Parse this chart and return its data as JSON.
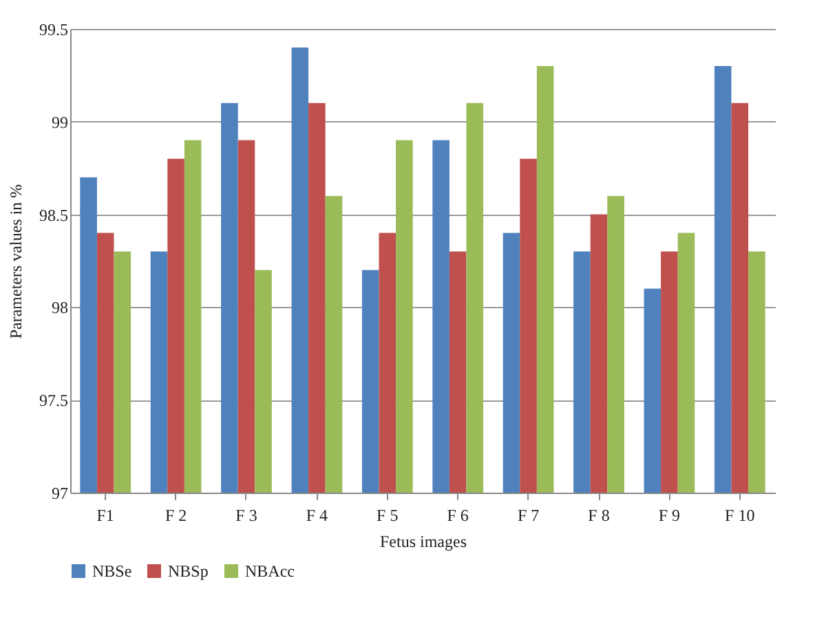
{
  "chart_data": {
    "type": "bar",
    "xlabel": "Fetus images",
    "ylabel": "Parameters values in %",
    "categories": [
      "F1",
      "F 2",
      "F 3",
      "F 4",
      "F 5",
      "F 6",
      "F 7",
      "F 8",
      "F 9",
      "F 10"
    ],
    "series": [
      {
        "name": "NBSe",
        "color": "#4f81bd",
        "values": [
          98.7,
          98.3,
          99.1,
          99.4,
          98.2,
          98.9,
          98.4,
          98.3,
          98.1,
          99.3
        ]
      },
      {
        "name": "NBSp",
        "color": "#c0504d",
        "values": [
          98.4,
          98.8,
          98.9,
          99.1,
          98.4,
          98.3,
          98.8,
          98.5,
          98.3,
          99.1
        ]
      },
      {
        "name": "NBAcc",
        "color": "#9bbb59",
        "values": [
          98.3,
          98.9,
          98.2,
          98.6,
          98.9,
          99.1,
          99.3,
          98.6,
          98.4,
          98.3
        ]
      }
    ],
    "ylim": [
      97,
      99.5
    ],
    "yticks": [
      97,
      97.5,
      98,
      98.5,
      99,
      99.5
    ],
    "grid": "y",
    "legend": "bottom"
  }
}
